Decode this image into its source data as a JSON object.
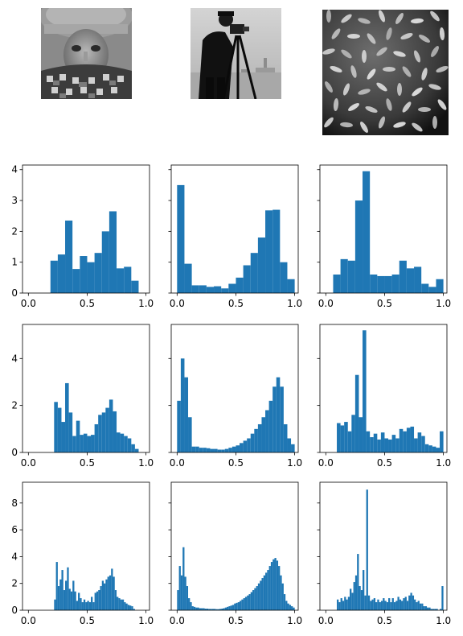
{
  "colors": {
    "bar": "#1f77b4",
    "axes": "#000000",
    "background": "#ffffff"
  },
  "images": [
    {
      "name": "woman-wearing-knit-hat-and-scarf",
      "render": "grayscale-photo"
    },
    {
      "name": "cameraman-with-tripod-camera",
      "render": "grayscale-photo"
    },
    {
      "name": "rice-grains-on-dark-background",
      "render": "grayscale-photo"
    }
  ],
  "chart_data": [
    {
      "type": "bar",
      "row": 1,
      "col": 1,
      "bins": 16,
      "xlim": [
        -0.05,
        1.03
      ],
      "ylim": [
        0,
        4.15
      ],
      "xticks": [
        "0.0",
        "0.5",
        "1.0"
      ],
      "yticks": [
        "0",
        "1",
        "2",
        "3",
        "4"
      ],
      "ytick_values": [
        0,
        1,
        2,
        3,
        4
      ],
      "show_ytick_labels": true,
      "x": [
        0.0,
        0.0625,
        0.125,
        0.1875,
        0.25,
        0.3125,
        0.375,
        0.4375,
        0.5,
        0.5625,
        0.625,
        0.6875,
        0.75,
        0.8125,
        0.875,
        0.9375
      ],
      "values": [
        0,
        0,
        0,
        1.05,
        1.25,
        2.35,
        0.78,
        1.2,
        1.0,
        1.3,
        2.0,
        2.65,
        0.8,
        0.85,
        0.4,
        0
      ]
    },
    {
      "type": "bar",
      "row": 1,
      "col": 2,
      "bins": 16,
      "xlim": [
        -0.05,
        1.03
      ],
      "ylim": [
        0,
        4.15
      ],
      "xticks": [
        "0.0",
        "0.5",
        "1.0"
      ],
      "yticks": [
        "0",
        "1",
        "2",
        "3",
        "4"
      ],
      "ytick_values": [
        0,
        1,
        2,
        3,
        4
      ],
      "show_ytick_labels": false,
      "x": [
        0.0,
        0.0625,
        0.125,
        0.1875,
        0.25,
        0.3125,
        0.375,
        0.4375,
        0.5,
        0.5625,
        0.625,
        0.6875,
        0.75,
        0.8125,
        0.875,
        0.9375
      ],
      "values": [
        3.5,
        0.95,
        0.25,
        0.25,
        0.2,
        0.22,
        0.15,
        0.3,
        0.5,
        0.9,
        1.3,
        1.8,
        2.68,
        2.7,
        1.0,
        0.45
      ]
    },
    {
      "type": "bar",
      "row": 1,
      "col": 3,
      "bins": 16,
      "xlim": [
        -0.05,
        1.03
      ],
      "ylim": [
        0,
        4.15
      ],
      "xticks": [
        "0.0",
        "0.5",
        "1.0"
      ],
      "yticks": [
        "0",
        "1",
        "2",
        "3",
        "4"
      ],
      "ytick_values": [
        0,
        1,
        2,
        3,
        4
      ],
      "show_ytick_labels": false,
      "x": [
        0.0,
        0.0625,
        0.125,
        0.1875,
        0.25,
        0.3125,
        0.375,
        0.4375,
        0.5,
        0.5625,
        0.625,
        0.6875,
        0.75,
        0.8125,
        0.875,
        0.9375
      ],
      "values": [
        0,
        0.6,
        1.1,
        1.05,
        3.0,
        3.95,
        0.6,
        0.55,
        0.55,
        0.6,
        1.05,
        0.8,
        0.85,
        0.3,
        0.2,
        0.45
      ]
    },
    {
      "type": "bar",
      "row": 2,
      "col": 1,
      "bins": 32,
      "xlim": [
        -0.05,
        1.03
      ],
      "ylim": [
        0,
        5.45
      ],
      "xticks": [
        "0.0",
        "0.5",
        "1.0"
      ],
      "yticks": [
        "0",
        "2",
        "4"
      ],
      "ytick_values": [
        0,
        2,
        4
      ],
      "show_ytick_labels": true,
      "x": [
        0.0,
        0.03125,
        0.0625,
        0.09375,
        0.125,
        0.15625,
        0.1875,
        0.21875,
        0.25,
        0.28125,
        0.3125,
        0.34375,
        0.375,
        0.40625,
        0.4375,
        0.46875,
        0.5,
        0.53125,
        0.5625,
        0.59375,
        0.625,
        0.65625,
        0.6875,
        0.71875,
        0.75,
        0.78125,
        0.8125,
        0.84375,
        0.875,
        0.90625,
        0.9375,
        0.96875
      ],
      "values": [
        0,
        0,
        0,
        0,
        0,
        0,
        0,
        2.15,
        1.9,
        1.3,
        2.95,
        1.7,
        0.7,
        1.35,
        0.75,
        0.8,
        0.7,
        0.75,
        1.2,
        1.6,
        1.7,
        1.9,
        2.25,
        1.75,
        0.85,
        0.8,
        0.7,
        0.6,
        0.35,
        0.15,
        0,
        0
      ]
    },
    {
      "type": "bar",
      "row": 2,
      "col": 2,
      "bins": 32,
      "xlim": [
        -0.05,
        1.03
      ],
      "ylim": [
        0,
        5.45
      ],
      "xticks": [
        "0.0",
        "0.5",
        "1.0"
      ],
      "yticks": [
        "0",
        "2",
        "4"
      ],
      "ytick_values": [
        0,
        2,
        4
      ],
      "show_ytick_labels": false,
      "x": [
        0.0,
        0.03125,
        0.0625,
        0.09375,
        0.125,
        0.15625,
        0.1875,
        0.21875,
        0.25,
        0.28125,
        0.3125,
        0.34375,
        0.375,
        0.40625,
        0.4375,
        0.46875,
        0.5,
        0.53125,
        0.5625,
        0.59375,
        0.625,
        0.65625,
        0.6875,
        0.71875,
        0.75,
        0.78125,
        0.8125,
        0.84375,
        0.875,
        0.90625,
        0.9375,
        0.96875
      ],
      "values": [
        2.2,
        4.0,
        3.2,
        1.5,
        0.25,
        0.25,
        0.2,
        0.2,
        0.18,
        0.15,
        0.15,
        0.12,
        0.12,
        0.15,
        0.2,
        0.25,
        0.3,
        0.4,
        0.5,
        0.6,
        0.8,
        1.0,
        1.2,
        1.5,
        1.8,
        2.2,
        2.8,
        3.2,
        2.8,
        1.2,
        0.6,
        0.35
      ]
    },
    {
      "type": "bar",
      "row": 2,
      "col": 3,
      "bins": 32,
      "xlim": [
        -0.05,
        1.03
      ],
      "ylim": [
        0,
        5.45
      ],
      "xticks": [
        "0.0",
        "0.5",
        "1.0"
      ],
      "yticks": [
        "0",
        "2",
        "4"
      ],
      "ytick_values": [
        0,
        2,
        4
      ],
      "show_ytick_labels": false,
      "x": [
        0.0,
        0.03125,
        0.0625,
        0.09375,
        0.125,
        0.15625,
        0.1875,
        0.21875,
        0.25,
        0.28125,
        0.3125,
        0.34375,
        0.375,
        0.40625,
        0.4375,
        0.46875,
        0.5,
        0.53125,
        0.5625,
        0.59375,
        0.625,
        0.65625,
        0.6875,
        0.71875,
        0.75,
        0.78125,
        0.8125,
        0.84375,
        0.875,
        0.90625,
        0.9375,
        0.96875
      ],
      "values": [
        0,
        0,
        0,
        1.25,
        1.15,
        1.3,
        0.9,
        1.6,
        3.3,
        1.5,
        5.2,
        0.9,
        0.65,
        0.8,
        0.55,
        0.85,
        0.6,
        0.55,
        0.75,
        0.6,
        1.0,
        0.9,
        1.05,
        1.1,
        0.6,
        0.85,
        0.7,
        0.35,
        0.3,
        0.25,
        0.2,
        0.9
      ]
    },
    {
      "type": "bar",
      "row": 3,
      "col": 1,
      "bins": 64,
      "xlim": [
        -0.05,
        1.03
      ],
      "ylim": [
        0,
        9.55
      ],
      "xticks": [
        "0.0",
        "0.5",
        "1.0"
      ],
      "yticks": [
        "0",
        "2",
        "4",
        "6",
        "8"
      ],
      "ytick_values": [
        0,
        2,
        4,
        6,
        8
      ],
      "show_ytick_labels": true,
      "x": [
        0.0,
        0.015625,
        0.03125,
        0.046875,
        0.0625,
        0.078125,
        0.09375,
        0.109375,
        0.125,
        0.140625,
        0.15625,
        0.171875,
        0.1875,
        0.203125,
        0.21875,
        0.234375,
        0.25,
        0.265625,
        0.28125,
        0.296875,
        0.3125,
        0.328125,
        0.34375,
        0.359375,
        0.375,
        0.390625,
        0.40625,
        0.421875,
        0.4375,
        0.453125,
        0.46875,
        0.484375,
        0.5,
        0.515625,
        0.53125,
        0.546875,
        0.5625,
        0.578125,
        0.59375,
        0.609375,
        0.625,
        0.640625,
        0.65625,
        0.671875,
        0.6875,
        0.703125,
        0.71875,
        0.734375,
        0.75,
        0.765625,
        0.78125,
        0.796875,
        0.8125,
        0.828125,
        0.84375,
        0.859375,
        0.875,
        0.890625,
        0.90625,
        0.921875,
        0.9375,
        0.953125,
        0.96875,
        0.984375
      ],
      "values": [
        0,
        0,
        0,
        0,
        0,
        0,
        0,
        0,
        0,
        0,
        0,
        0,
        0,
        0,
        0.8,
        3.6,
        1.8,
        2.3,
        3.0,
        1.5,
        2.2,
        3.2,
        1.6,
        1.4,
        2.2,
        1.4,
        0.7,
        1.3,
        0.9,
        0.6,
        0.8,
        0.6,
        0.7,
        0.6,
        1.0,
        0.6,
        1.3,
        1.4,
        1.5,
        1.8,
        2.2,
        2.0,
        2.3,
        2.5,
        2.6,
        3.1,
        2.5,
        1.5,
        1.0,
        0.9,
        0.8,
        0.8,
        0.6,
        0.5,
        0.4,
        0.35,
        0.3,
        0.1,
        0,
        0,
        0,
        0,
        0,
        0
      ]
    },
    {
      "type": "bar",
      "row": 3,
      "col": 2,
      "bins": 64,
      "xlim": [
        -0.05,
        1.03
      ],
      "ylim": [
        0,
        9.55
      ],
      "xticks": [
        "0.0",
        "0.5",
        "1.0"
      ],
      "yticks": [
        "0",
        "2",
        "4",
        "6",
        "8"
      ],
      "ytick_values": [
        0,
        2,
        4,
        6,
        8
      ],
      "show_ytick_labels": false,
      "x": [
        0.0,
        0.015625,
        0.03125,
        0.046875,
        0.0625,
        0.078125,
        0.09375,
        0.109375,
        0.125,
        0.140625,
        0.15625,
        0.171875,
        0.1875,
        0.203125,
        0.21875,
        0.234375,
        0.25,
        0.265625,
        0.28125,
        0.296875,
        0.3125,
        0.328125,
        0.34375,
        0.359375,
        0.375,
        0.390625,
        0.40625,
        0.421875,
        0.4375,
        0.453125,
        0.46875,
        0.484375,
        0.5,
        0.515625,
        0.53125,
        0.546875,
        0.5625,
        0.578125,
        0.59375,
        0.609375,
        0.625,
        0.640625,
        0.65625,
        0.671875,
        0.6875,
        0.703125,
        0.71875,
        0.734375,
        0.75,
        0.765625,
        0.78125,
        0.796875,
        0.8125,
        0.828125,
        0.84375,
        0.859375,
        0.875,
        0.890625,
        0.90625,
        0.921875,
        0.9375,
        0.953125,
        0.96875,
        0.984375
      ],
      "values": [
        1.5,
        3.3,
        2.6,
        4.7,
        2.5,
        1.8,
        0.9,
        0.6,
        0.3,
        0.25,
        0.2,
        0.2,
        0.15,
        0.15,
        0.15,
        0.12,
        0.12,
        0.1,
        0.1,
        0.1,
        0.1,
        0.08,
        0.08,
        0.1,
        0.12,
        0.15,
        0.2,
        0.25,
        0.3,
        0.35,
        0.4,
        0.5,
        0.55,
        0.6,
        0.7,
        0.8,
        0.9,
        1.0,
        1.1,
        1.2,
        1.35,
        1.5,
        1.65,
        1.8,
        2.0,
        2.2,
        2.4,
        2.6,
        2.8,
        3.0,
        3.3,
        3.6,
        3.8,
        3.9,
        3.7,
        3.3,
        2.6,
        2.0,
        1.2,
        0.7,
        0.5,
        0.4,
        0.3,
        0.2
      ]
    },
    {
      "type": "bar",
      "row": 3,
      "col": 3,
      "bins": 64,
      "xlim": [
        -0.05,
        1.03
      ],
      "ylim": [
        0,
        9.55
      ],
      "xticks": [
        "0.0",
        "0.5",
        "1.0"
      ],
      "yticks": [
        "0",
        "2",
        "4",
        "6",
        "8"
      ],
      "ytick_values": [
        0,
        2,
        4,
        6,
        8
      ],
      "show_ytick_labels": false,
      "x": [
        0.0,
        0.015625,
        0.03125,
        0.046875,
        0.0625,
        0.078125,
        0.09375,
        0.109375,
        0.125,
        0.140625,
        0.15625,
        0.171875,
        0.1875,
        0.203125,
        0.21875,
        0.234375,
        0.25,
        0.265625,
        0.28125,
        0.296875,
        0.3125,
        0.328125,
        0.34375,
        0.359375,
        0.375,
        0.390625,
        0.40625,
        0.421875,
        0.4375,
        0.453125,
        0.46875,
        0.484375,
        0.5,
        0.515625,
        0.53125,
        0.546875,
        0.5625,
        0.578125,
        0.59375,
        0.609375,
        0.625,
        0.640625,
        0.65625,
        0.671875,
        0.6875,
        0.703125,
        0.71875,
        0.734375,
        0.75,
        0.765625,
        0.78125,
        0.796875,
        0.8125,
        0.828125,
        0.84375,
        0.859375,
        0.875,
        0.890625,
        0.90625,
        0.921875,
        0.9375,
        0.953125,
        0.96875,
        0.984375
      ],
      "values": [
        0,
        0,
        0,
        0,
        0,
        0,
        0.8,
        0.6,
        0.9,
        0.7,
        1.0,
        0.8,
        1.0,
        1.6,
        1.3,
        2.1,
        2.6,
        4.2,
        1.8,
        1.5,
        3.0,
        1.1,
        9.0,
        1.1,
        0.7,
        0.8,
        0.9,
        0.6,
        0.8,
        0.6,
        0.7,
        0.9,
        0.7,
        0.6,
        0.9,
        0.6,
        0.9,
        0.6,
        0.7,
        1.0,
        0.8,
        0.7,
        0.9,
        1.0,
        0.7,
        1.1,
        1.3,
        1.1,
        0.8,
        0.6,
        0.7,
        0.5,
        0.5,
        0.3,
        0.3,
        0.2,
        0.2,
        0.1,
        0.1,
        0.1,
        0.1,
        0,
        0.1,
        1.8
      ]
    }
  ]
}
